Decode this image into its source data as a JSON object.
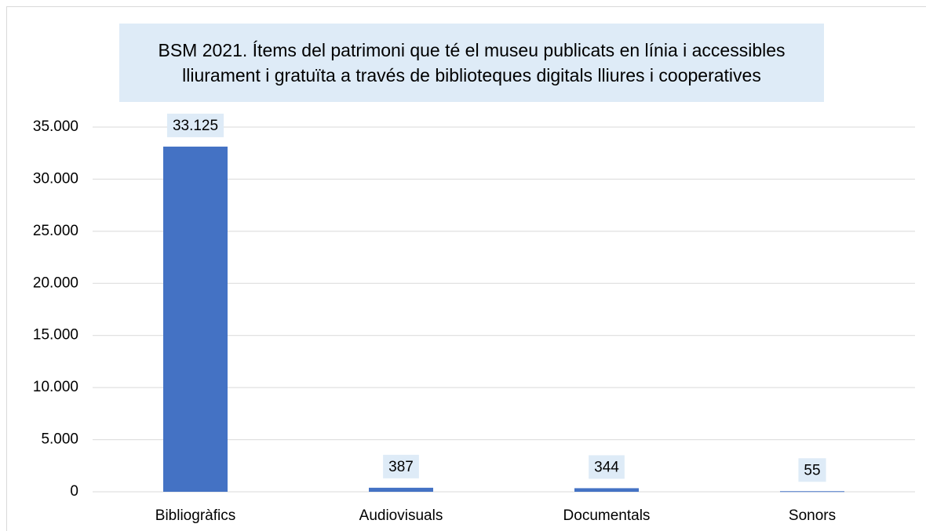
{
  "chart_data": {
    "type": "bar",
    "title": "BSM 2021. Ítems del patrimoni que té el museu publicats en línia i accessibles lliurament i gratuïta a través de biblioteques digitals lliures i cooperatives",
    "categories": [
      "Bibliogràfics",
      "Audiovisuals",
      "Documentals",
      "Sonors"
    ],
    "values": [
      33125,
      387,
      344,
      55
    ],
    "value_labels": [
      "33.125",
      "387",
      "344",
      "55"
    ],
    "color": "#4472c4",
    "ylim": [
      0,
      35000
    ],
    "yticks": [
      0,
      {
        "value": 5000,
        "label": "5.000"
      },
      {
        "value": 10000,
        "label": "10.000"
      },
      {
        "value": 15000,
        "label": "15.000"
      },
      {
        "value": 20000,
        "label": "20.000"
      },
      {
        "value": 25000,
        "label": "25.000"
      },
      {
        "value": 30000,
        "label": "30.000"
      },
      {
        "value": 35000,
        "label": "35.000"
      }
    ],
    "grid": true
  }
}
